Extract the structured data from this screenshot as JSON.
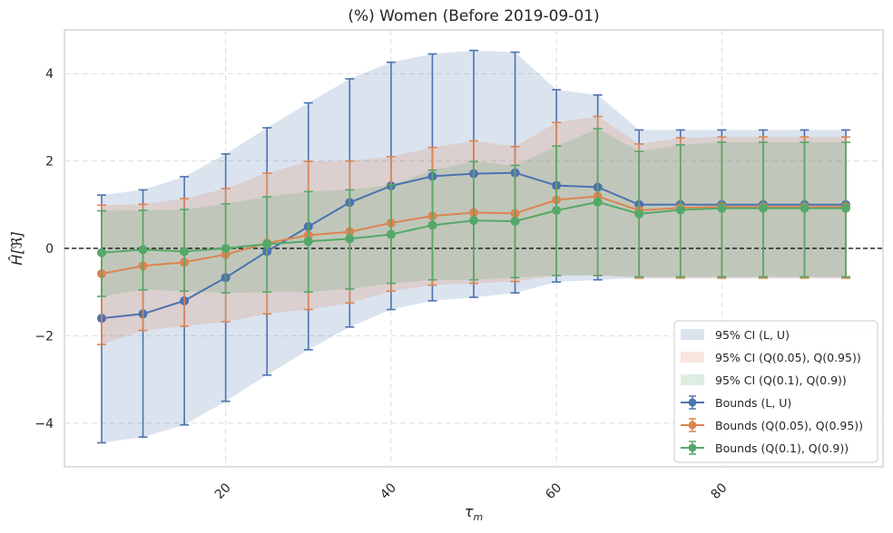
{
  "chart_data": {
    "type": "line",
    "title": "(%) Women (Before 2019-09-01)",
    "xlabel": "τ_m",
    "xlabel_main": "τ",
    "xlabel_sub": "m",
    "ylabel": "Ĥ[ℜ]",
    "xlim": [
      0.5,
      99.5
    ],
    "ylim": [
      -5,
      5
    ],
    "xticks": [
      20,
      40,
      60,
      80
    ],
    "xtick_labels": [
      "20",
      "40",
      "60",
      "80"
    ],
    "yticks": [
      -4,
      -2,
      0,
      2,
      4
    ],
    "ytick_labels": [
      "−4",
      "−2",
      "0",
      "2",
      "4"
    ],
    "grid": true,
    "reference_line_y": 0,
    "legend_position": "lower-right",
    "x": [
      5,
      10,
      15,
      20,
      25,
      30,
      35,
      40,
      45,
      50,
      55,
      60,
      65,
      70,
      75,
      80,
      85,
      90,
      95
    ],
    "series": [
      {
        "name": "Bounds (L, U)",
        "band_label": "95% CI (L, U)",
        "color": "#4c72b0",
        "band_color": "#4c72b0",
        "values": [
          -1.6,
          -1.5,
          -1.2,
          -0.67,
          -0.07,
          0.5,
          1.05,
          1.43,
          1.65,
          1.71,
          1.73,
          1.44,
          1.4,
          1.0,
          1.0,
          1.0,
          1.0,
          1.0,
          1.0
        ],
        "lower": [
          -4.45,
          -4.32,
          -4.04,
          -3.5,
          -2.9,
          -2.32,
          -1.8,
          -1.4,
          -1.2,
          -1.12,
          -1.02,
          -0.77,
          -0.72,
          -0.68,
          -0.68,
          -0.68,
          -0.68,
          -0.68,
          -0.68
        ],
        "upper": [
          1.22,
          1.34,
          1.64,
          2.16,
          2.76,
          3.33,
          3.88,
          4.26,
          4.45,
          4.53,
          4.49,
          3.63,
          3.51,
          2.71,
          2.71,
          2.71,
          2.71,
          2.71,
          2.71
        ]
      },
      {
        "name": "Bounds (Q(0.05), Q(0.95))",
        "band_label": "95% CI (Q(0.05), Q(0.95))",
        "color": "#dd8452",
        "band_color": "#dd8452",
        "values": [
          -0.58,
          -0.4,
          -0.32,
          -0.14,
          0.12,
          0.3,
          0.38,
          0.58,
          0.74,
          0.82,
          0.8,
          1.11,
          1.19,
          0.87,
          0.93,
          0.95,
          0.95,
          0.95,
          0.95
        ],
        "lower": [
          -2.2,
          -1.88,
          -1.78,
          -1.68,
          -1.5,
          -1.4,
          -1.25,
          -0.98,
          -0.84,
          -0.8,
          -0.76,
          -0.62,
          -0.62,
          -0.68,
          -0.68,
          -0.68,
          -0.68,
          -0.68,
          -0.68
        ],
        "upper": [
          0.99,
          1.01,
          1.14,
          1.37,
          1.72,
          1.99,
          2.0,
          2.1,
          2.31,
          2.46,
          2.33,
          2.88,
          3.02,
          2.39,
          2.53,
          2.55,
          2.55,
          2.55,
          2.55
        ]
      },
      {
        "name": "Bounds (Q(0.1), Q(0.9))",
        "band_label": "95% CI (Q(0.1), Q(0.9))",
        "color": "#55a868",
        "band_color": "#55a868",
        "values": [
          -0.1,
          -0.03,
          -0.07,
          0.0,
          0.1,
          0.16,
          0.22,
          0.32,
          0.53,
          0.64,
          0.62,
          0.87,
          1.06,
          0.79,
          0.88,
          0.92,
          0.92,
          0.92,
          0.92
        ],
        "lower": [
          -1.1,
          -0.95,
          -0.98,
          -1.02,
          -1.0,
          -1.0,
          -0.93,
          -0.8,
          -0.72,
          -0.72,
          -0.67,
          -0.62,
          -0.62,
          -0.65,
          -0.65,
          -0.65,
          -0.65,
          -0.65,
          -0.65
        ],
        "upper": [
          0.86,
          0.87,
          0.89,
          1.02,
          1.18,
          1.3,
          1.34,
          1.45,
          1.79,
          1.99,
          1.9,
          2.34,
          2.74,
          2.22,
          2.37,
          2.43,
          2.43,
          2.43,
          2.43
        ]
      }
    ]
  }
}
